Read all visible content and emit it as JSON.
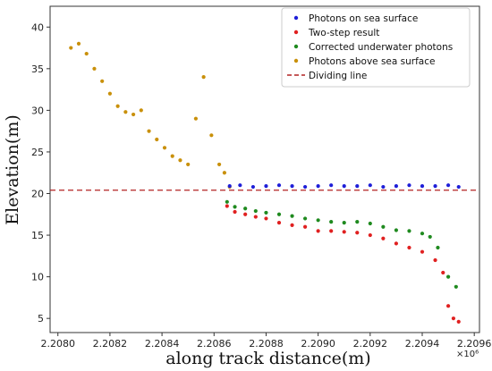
{
  "chart_data": {
    "type": "scatter",
    "title": "",
    "xlabel": "along track distance(m)",
    "ylabel": "Elevation(m)",
    "x_multiplier_label": "×10⁶",
    "xlim": [
      2.20797,
      2.20962
    ],
    "ylim": [
      3.3,
      42.5
    ],
    "x_ticks": [
      2.208,
      2.2082,
      2.2084,
      2.2086,
      2.2088,
      2.209,
      2.2092,
      2.2094,
      2.2096
    ],
    "x_tick_labels": [
      "2.2080",
      "2.2082",
      "2.2084",
      "2.2086",
      "2.2088",
      "2.2090",
      "2.2092",
      "2.2094",
      "2.2096"
    ],
    "y_ticks": [
      5,
      10,
      15,
      20,
      25,
      30,
      35,
      40
    ],
    "y_tick_labels": [
      "5",
      "10",
      "15",
      "20",
      "25",
      "30",
      "35",
      "40"
    ],
    "grid": false,
    "legend_position": "top-right",
    "series": [
      {
        "name": "Photons on sea surface",
        "color": "#1f1fd8",
        "x": [
          2.20866,
          2.2087,
          2.20875,
          2.2088,
          2.20885,
          2.2089,
          2.20895,
          2.209,
          2.20905,
          2.2091,
          2.20915,
          2.2092,
          2.20925,
          2.2093,
          2.20935,
          2.2094,
          2.20945,
          2.2095,
          2.20954
        ],
        "y": [
          20.9,
          21.0,
          20.8,
          20.9,
          21.0,
          20.9,
          20.8,
          20.9,
          21.0,
          20.9,
          20.9,
          21.0,
          20.8,
          20.9,
          21.0,
          20.9,
          20.9,
          21.0,
          20.8
        ]
      },
      {
        "name": "Two-step result",
        "color": "#e02020",
        "x": [
          2.20865,
          2.20868,
          2.20872,
          2.20876,
          2.2088,
          2.20885,
          2.2089,
          2.20895,
          2.209,
          2.20905,
          2.2091,
          2.20915,
          2.2092,
          2.20925,
          2.2093,
          2.20935,
          2.2094,
          2.20945,
          2.20948,
          2.2095,
          2.20952,
          2.20954
        ],
        "y": [
          18.5,
          17.8,
          17.5,
          17.2,
          17.0,
          16.5,
          16.2,
          16.0,
          15.5,
          15.5,
          15.4,
          15.3,
          15.0,
          14.6,
          14.0,
          13.5,
          13.0,
          12.0,
          10.5,
          6.5,
          5.0,
          4.6
        ]
      },
      {
        "name": "Corrected underwater photons",
        "color": "#1f8a1f",
        "x": [
          2.20865,
          2.20868,
          2.20872,
          2.20876,
          2.2088,
          2.20885,
          2.2089,
          2.20895,
          2.209,
          2.20905,
          2.2091,
          2.20915,
          2.2092,
          2.20925,
          2.2093,
          2.20935,
          2.2094,
          2.20943,
          2.20946,
          2.2095,
          2.20953
        ],
        "y": [
          19.0,
          18.4,
          18.2,
          17.9,
          17.7,
          17.5,
          17.3,
          17.0,
          16.8,
          16.6,
          16.5,
          16.6,
          16.4,
          16.0,
          15.6,
          15.5,
          15.2,
          14.8,
          13.5,
          10.0,
          8.8
        ]
      },
      {
        "name": "Photons above sea surface",
        "color": "#c9900a",
        "x": [
          2.20805,
          2.20808,
          2.20811,
          2.20814,
          2.20817,
          2.2082,
          2.20823,
          2.20826,
          2.20829,
          2.20832,
          2.20835,
          2.20838,
          2.20841,
          2.20844,
          2.20847,
          2.2085,
          2.20853,
          2.20856,
          2.20859,
          2.20862,
          2.20864,
          2.20866
        ],
        "y": [
          37.5,
          38.0,
          36.8,
          35.0,
          33.5,
          32.0,
          30.5,
          29.8,
          29.5,
          30.0,
          27.5,
          26.5,
          25.5,
          24.5,
          24.0,
          23.5,
          29.0,
          34.0,
          27.0,
          23.5,
          22.5,
          20.8
        ]
      },
      {
        "name": "Dividing line",
        "color": "#b22222",
        "style": "dashed",
        "y": 20.4
      }
    ]
  }
}
